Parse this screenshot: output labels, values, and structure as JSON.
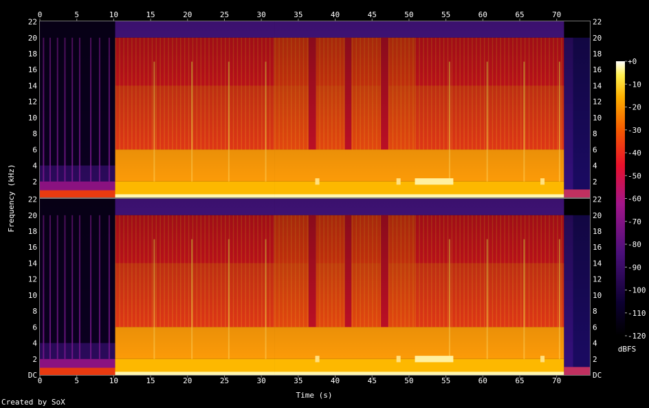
{
  "chart_data": {
    "type": "heatmap",
    "title": "",
    "xlabel": "Time (s)",
    "ylabel": "Frequency (kHz)",
    "xlim": [
      0,
      74.5
    ],
    "ylim": [
      0,
      22.05
    ],
    "x_ticks": [
      0,
      5,
      10,
      15,
      20,
      25,
      30,
      35,
      40,
      45,
      50,
      55,
      60,
      65,
      70
    ],
    "y_ticks": [
      "DC",
      "2",
      "4",
      "6",
      "8",
      "10",
      "12",
      "14",
      "16",
      "18",
      "20",
      "22"
    ],
    "y_ticks_top": [
      "2",
      "4",
      "6",
      "8",
      "10",
      "12",
      "14",
      "16",
      "18",
      "20",
      "22"
    ],
    "channels": 2,
    "colorbar": {
      "label": "dBFS",
      "range": [
        -120,
        0
      ],
      "ticks": [
        "+0",
        "-10",
        "-20",
        "-30",
        "-40",
        "-50",
        "-60",
        "-70",
        "-80",
        "-90",
        "-100",
        "-110",
        "-120"
      ]
    },
    "segments": [
      {
        "start": 0,
        "end": 10.2,
        "level": "quiet"
      },
      {
        "start": 10.2,
        "end": 31.8,
        "level": "loud"
      },
      {
        "start": 31.8,
        "end": 50.8,
        "level": "loud-pulsed"
      },
      {
        "start": 50.8,
        "end": 71.0,
        "level": "loud"
      },
      {
        "start": 71.0,
        "end": 74.5,
        "level": "fade"
      }
    ],
    "gaps": [
      {
        "start": 36.4,
        "end": 37.4
      },
      {
        "start": 41.3,
        "end": 42.2
      },
      {
        "start": 46.2,
        "end": 47.2
      }
    ],
    "accents": [
      15.4,
      20.5,
      25.5,
      30.5,
      55.4,
      60.5,
      65.5,
      70.3
    ],
    "quiet_plucks": [
      0.4,
      1.3,
      2.3,
      3.3,
      4.3,
      5.3,
      6.8,
      8.0,
      9.3
    ]
  },
  "footer": {
    "credit": "Created by SoX"
  }
}
